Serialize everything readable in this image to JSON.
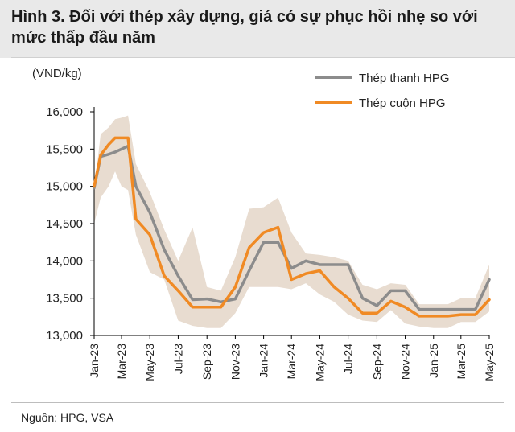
{
  "header": {
    "title_line1": "Hình 3. Đối với thép xây dựng, giá có sự phục hồi nhẹ so với",
    "title_line2": "mức thấp đầu năm"
  },
  "source": "Nguồn: HPG, VSA",
  "colors": {
    "thep_thanh": "#8c8c8c",
    "thep_cuon": "#f08a24",
    "band": "#e8dcd0",
    "axis": "#000000"
  },
  "chart_data": {
    "type": "line",
    "unit_label": "(VND/kg)",
    "ylim": [
      13000,
      16000
    ],
    "yticks": [
      13000,
      13500,
      14000,
      14500,
      15000,
      15500,
      16000
    ],
    "ytick_labels": [
      "13,000",
      "13,500",
      "14,000",
      "14,500",
      "15,000",
      "15,500",
      "16,000"
    ],
    "x": [
      "2023-01-01",
      "2023-01-15",
      "2023-02-01",
      "2023-02-15",
      "2023-03-01",
      "2023-03-15",
      "2023-04-01",
      "2023-05-01",
      "2023-06-01",
      "2023-07-01",
      "2023-08-01",
      "2023-09-01",
      "2023-10-01",
      "2023-11-01",
      "2023-12-01",
      "2024-01-01",
      "2024-02-01",
      "2024-03-01",
      "2024-04-01",
      "2024-05-01",
      "2024-06-01",
      "2024-07-01",
      "2024-08-01",
      "2024-09-01",
      "2024-10-01",
      "2024-11-01",
      "2024-12-01",
      "2025-01-01",
      "2025-02-01",
      "2025-03-01",
      "2025-04-01",
      "2025-05-01"
    ],
    "xtick_labels": [
      "Jan-23",
      "Mar-23",
      "May-23",
      "Jul-23",
      "Sep-23",
      "Nov-23",
      "Jan-24",
      "Mar-24",
      "May-24",
      "Jul-24",
      "Sep-24",
      "Nov-24",
      "Jan-25",
      "Mar-25",
      "May-25"
    ],
    "xtick_dates": [
      "2023-01-01",
      "2023-03-01",
      "2023-05-01",
      "2023-07-01",
      "2023-09-01",
      "2023-11-01",
      "2024-01-01",
      "2024-03-01",
      "2024-05-01",
      "2024-07-01",
      "2024-09-01",
      "2024-11-01",
      "2025-01-01",
      "2025-03-01",
      "2025-05-01"
    ],
    "series": [
      {
        "name": "Thép thanh HPG",
        "values": [
          14980,
          15400,
          15430,
          15460,
          15500,
          15540,
          15000,
          14650,
          14150,
          13800,
          13480,
          13490,
          13450,
          13490,
          13870,
          14250,
          14250,
          13900,
          14000,
          13950,
          13950,
          13950,
          13500,
          13400,
          13600,
          13600,
          13350,
          13350,
          13350,
          13350,
          13350,
          13750
        ]
      },
      {
        "name": "Thép cuộn HPG",
        "values": [
          15000,
          15420,
          15560,
          15650,
          15650,
          15650,
          14560,
          14350,
          13800,
          13600,
          13380,
          13380,
          13380,
          13650,
          14180,
          14380,
          14450,
          13750,
          13830,
          13870,
          13650,
          13500,
          13300,
          13300,
          13460,
          13380,
          13260,
          13260,
          13260,
          13280,
          13280,
          13480
        ]
      }
    ],
    "band_upper": [
      14950,
      15700,
      15790,
      15900,
      15920,
      15950,
      15300,
      14920,
      14420,
      14000,
      14450,
      13650,
      13600,
      14050,
      14700,
      14720,
      14850,
      14380,
      14100,
      14080,
      14050,
      14000,
      13680,
      13620,
      13700,
      13680,
      13420,
      13420,
      13420,
      13500,
      13500,
      13950
    ],
    "band_lower": [
      14500,
      14850,
      15000,
      15200,
      15000,
      14950,
      14350,
      13850,
      13750,
      13200,
      13130,
      13100,
      13100,
      13300,
      13650,
      13650,
      13650,
      13620,
      13700,
      13550,
      13450,
      13280,
      13200,
      13180,
      13340,
      13160,
      13120,
      13100,
      13100,
      13180,
      13180,
      13320
    ],
    "legend_position": "top-right",
    "grid": false
  }
}
